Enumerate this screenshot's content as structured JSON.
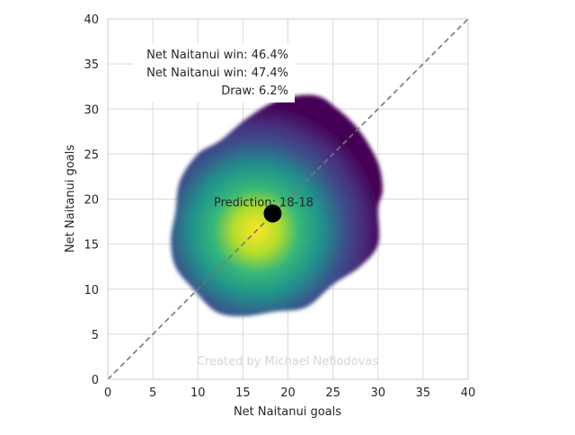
{
  "chart_data": {
    "type": "heatmap",
    "xlabel": "Net Naitanui goals",
    "ylabel": "Net Naitanui goals",
    "xlim": [
      0,
      40
    ],
    "ylim": [
      0,
      40
    ],
    "x_ticks": [
      0,
      5,
      10,
      15,
      20,
      25,
      30,
      35,
      40
    ],
    "y_ticks": [
      0,
      5,
      10,
      15,
      20,
      25,
      30,
      35,
      40
    ],
    "grid": true,
    "density": {
      "colormap": "viridis",
      "peak": [
        16.5,
        16.5
      ],
      "contour": [
        [
          12.5,
          26.5
        ],
        [
          15.5,
          29.0
        ],
        [
          19.0,
          31.0
        ],
        [
          23.0,
          31.5
        ],
        [
          25.5,
          30.0
        ],
        [
          28.0,
          27.5
        ],
        [
          30.0,
          24.0
        ],
        [
          30.5,
          21.0
        ],
        [
          30.0,
          19.0
        ],
        [
          30.0,
          15.0
        ],
        [
          28.0,
          12.5
        ],
        [
          25.0,
          10.5
        ],
        [
          22.0,
          8.0
        ],
        [
          18.5,
          7.5
        ],
        [
          15.0,
          7.0
        ],
        [
          12.0,
          7.5
        ],
        [
          9.5,
          10.0
        ],
        [
          7.5,
          12.5
        ],
        [
          7.0,
          15.5
        ],
        [
          7.5,
          18.5
        ],
        [
          8.0,
          22.0
        ],
        [
          10.0,
          25.0
        ]
      ]
    },
    "prediction_point": {
      "x": 18.3,
      "y": 18.4,
      "label": "Prediction: 18-18"
    },
    "diagonal": {
      "from": [
        0,
        0
      ],
      "to": [
        40,
        40
      ],
      "style": "dashed",
      "color": "#777777"
    },
    "annotations": {
      "win_a": "Net Naitanui win: 46.4%",
      "win_b": "Net Naitanui win: 47.4%",
      "draw": "Draw: 6.2%"
    },
    "watermark": "Created by Michael Nefiodovas"
  },
  "colors": {
    "grid": "#d9d9d9",
    "axis": "#cccccc",
    "text": "#262626",
    "watermark": "#d4d4d4",
    "point": "#000000",
    "viridis": [
      "#440154",
      "#3b528b",
      "#21918c",
      "#5ec962",
      "#fde725"
    ]
  }
}
